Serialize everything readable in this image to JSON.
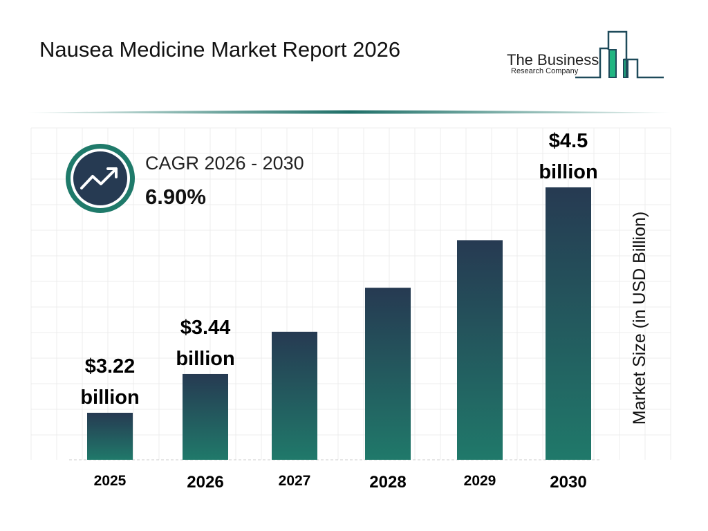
{
  "title": "Nausea Medicine Market Report 2026",
  "logo": {
    "line1": "The Business",
    "line2": "Research Company"
  },
  "cagr": {
    "label": "CAGR 2026 - 2030",
    "value": "6.90%",
    "icon": "trending-up-icon"
  },
  "colors": {
    "bar_top": "#263a52",
    "bar_bottom": "#20796a",
    "accent": "#1f7a6a",
    "logo_green": "#20b581",
    "logo_dark": "#1e4a5a"
  },
  "chart_data": {
    "type": "bar",
    "categories": [
      "2025",
      "2026",
      "2027",
      "2028",
      "2029",
      "2030"
    ],
    "values": [
      3.22,
      3.44,
      3.68,
      3.93,
      4.2,
      4.5
    ],
    "data_labels": [
      {
        "index": 0,
        "line1": "$3.22",
        "line2": "billion"
      },
      {
        "index": 1,
        "line1": "$3.44",
        "line2": "billion"
      },
      {
        "index": 5,
        "line1": "$4.5",
        "line2": "billion"
      }
    ],
    "ylabel": "Market Size (in USD Billion)",
    "grid": true
  }
}
